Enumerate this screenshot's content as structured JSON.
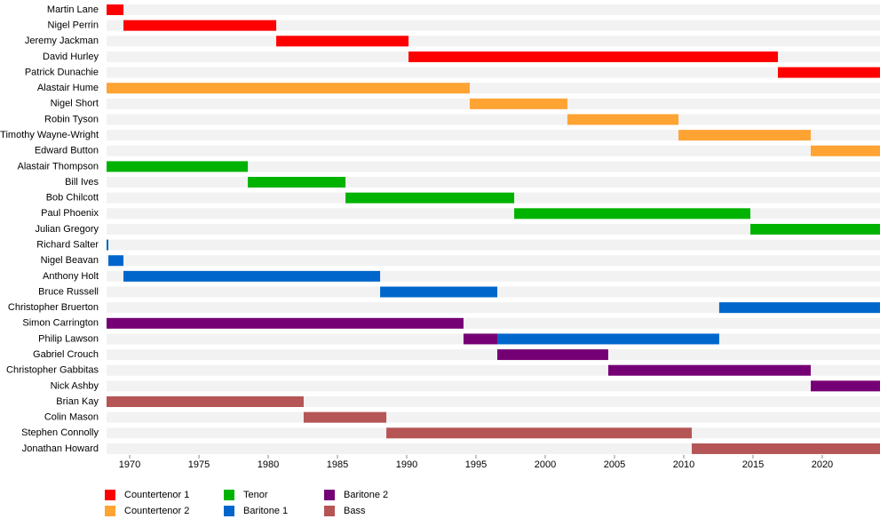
{
  "chart_data": {
    "type": "timeline",
    "categories": [
      "Martin Lane",
      "Nigel Perrin",
      "Jeremy Jackman",
      "David Hurley",
      "Patrick Dunachie",
      "Alastair Hume",
      "Nigel Short",
      "Robin Tyson",
      "Timothy Wayne-Wright",
      "Edward Button",
      "Alastair Thompson",
      "Bill Ives",
      "Bob Chilcott",
      "Paul Phoenix",
      "Julian Gregory",
      "Richard Salter",
      "Nigel Beavan",
      "Anthony Holt",
      "Bruce Russell",
      "Christopher Bruerton",
      "Simon Carrington",
      "Philip Lawson",
      "Gabriel Crouch",
      "Christopher Gabbitas",
      "Nick Ashby",
      "Brian Kay",
      "Colin Mason",
      "Stephen Connolly",
      "Jonathan Howard"
    ],
    "series": [
      {
        "name": "Countertenor 1",
        "color": "#ff0000",
        "values": [
          [
            1968.33,
            1969.55
          ],
          [
            1969.55,
            1980.58
          ],
          [
            1980.58,
            1990.13
          ],
          [
            1990.13,
            2016.8
          ],
          [
            2016.8,
            2024.17
          ],
          null,
          null,
          null,
          null,
          null,
          null,
          null,
          null,
          null,
          null,
          null,
          null,
          null,
          null,
          null,
          null,
          null,
          null,
          null,
          null,
          null,
          null,
          null,
          null
        ]
      },
      {
        "name": "Countertenor 2",
        "color": "#ffa333",
        "values": [
          null,
          null,
          null,
          null,
          null,
          [
            1968.33,
            1994.55
          ],
          [
            1994.55,
            2001.6
          ],
          [
            2001.6,
            2009.62
          ],
          [
            2009.62,
            2019.17
          ],
          [
            2019.17,
            2024.17
          ],
          null,
          null,
          null,
          null,
          null,
          null,
          null,
          null,
          null,
          null,
          null,
          null,
          null,
          null,
          null,
          null,
          null,
          null,
          null
        ]
      },
      {
        "name": "Tenor",
        "color": "#00b300",
        "values": [
          null,
          null,
          null,
          null,
          null,
          null,
          null,
          null,
          null,
          null,
          [
            1968.33,
            1978.53
          ],
          [
            1978.53,
            1985.58
          ],
          [
            1985.58,
            1997.76
          ],
          [
            1997.76,
            2014.81
          ],
          [
            2014.81,
            2024.17
          ],
          null,
          null,
          null,
          null,
          null,
          null,
          null,
          null,
          null,
          null,
          null,
          null,
          null,
          null
        ]
      },
      {
        "name": "Baritone 1",
        "color": "#0066cc",
        "values": [
          null,
          null,
          null,
          null,
          null,
          null,
          null,
          null,
          null,
          null,
          null,
          null,
          null,
          null,
          null,
          [
            1968.33,
            1968.46
          ],
          [
            1968.46,
            1969.55
          ],
          [
            1969.55,
            1988.08
          ],
          [
            1988.08,
            1996.54
          ],
          [
            2012.56,
            2024.17
          ],
          null,
          [
            1996.54,
            2012.56
          ],
          null,
          null,
          null,
          null,
          null,
          null,
          null
        ]
      },
      {
        "name": "Baritone 2",
        "color": "#750075",
        "values": [
          null,
          null,
          null,
          null,
          null,
          null,
          null,
          null,
          null,
          null,
          null,
          null,
          null,
          null,
          null,
          null,
          null,
          null,
          null,
          null,
          [
            1968.33,
            1994.1
          ],
          [
            1994.1,
            1996.54
          ],
          [
            1996.54,
            2004.55
          ],
          [
            2004.55,
            2019.17
          ],
          [
            2019.17,
            2024.17
          ],
          null,
          null,
          null,
          null
        ]
      },
      {
        "name": "Bass",
        "color": "#b55555",
        "values": [
          null,
          null,
          null,
          null,
          null,
          null,
          null,
          null,
          null,
          null,
          null,
          null,
          null,
          null,
          null,
          null,
          null,
          null,
          null,
          null,
          null,
          null,
          null,
          null,
          null,
          [
            1968.33,
            1982.56
          ],
          [
            1982.56,
            1988.53
          ],
          [
            1988.53,
            2010.58
          ],
          [
            2010.58,
            2024.17
          ]
        ]
      }
    ],
    "xlim": [
      1968.33,
      2024.17
    ],
    "xticks": [
      1970,
      1975,
      1980,
      1985,
      1990,
      1995,
      2000,
      2005,
      2010,
      2015,
      2020
    ]
  }
}
